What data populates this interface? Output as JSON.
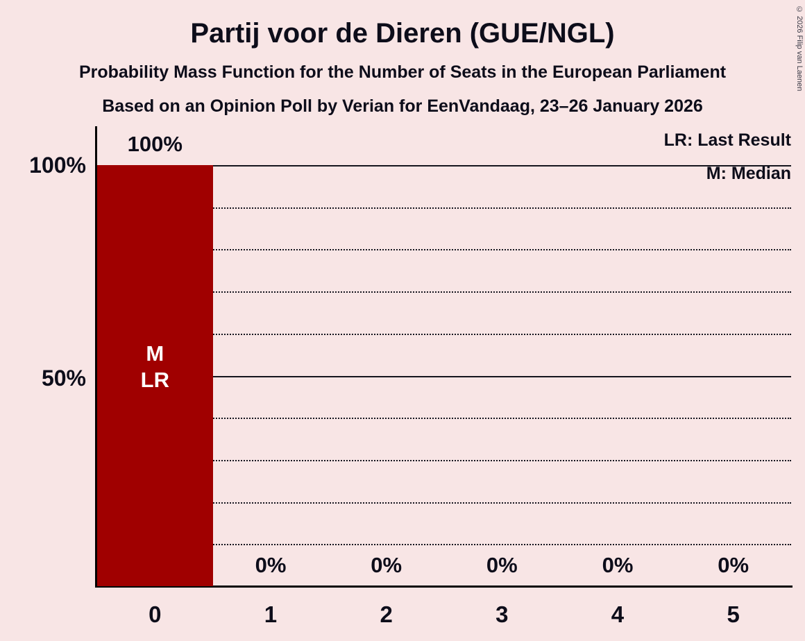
{
  "page": {
    "background_color": "#f8e5e5"
  },
  "header": {
    "title": "Partij voor de Dieren (GUE/NGL)",
    "subtitle": "Probability Mass Function for the Number of Seats in the European Parliament",
    "poll_line": "Based on an Opinion Poll by Verian for EenVandaag, 23–26 January 2026"
  },
  "legend": {
    "last_result": "LR: Last Result",
    "median": "M: Median"
  },
  "copyright": "© 2026 Filip van Laenen",
  "chart_data": {
    "type": "bar",
    "title": "Partij voor de Dieren (GUE/NGL)",
    "categories": [
      "0",
      "1",
      "2",
      "3",
      "4",
      "5"
    ],
    "values": [
      100,
      0,
      0,
      0,
      0,
      0
    ],
    "value_labels": [
      "100%",
      "0%",
      "0%",
      "0%",
      "0%",
      "0%"
    ],
    "xlabel": "",
    "ylabel": "",
    "ylim": [
      0,
      100
    ],
    "ytick_labels": [
      "100%",
      "50%"
    ],
    "ytick_values": [
      100,
      50
    ],
    "grid": {
      "interval": 10,
      "solid_at": [
        100,
        50
      ],
      "style": "dotted"
    },
    "legend_position": "top-right",
    "bar_color": "#a00000",
    "bar_label_color": "#ffffff",
    "annotations": [
      {
        "category_index": 0,
        "lines": [
          "M",
          "LR"
        ]
      }
    ]
  }
}
